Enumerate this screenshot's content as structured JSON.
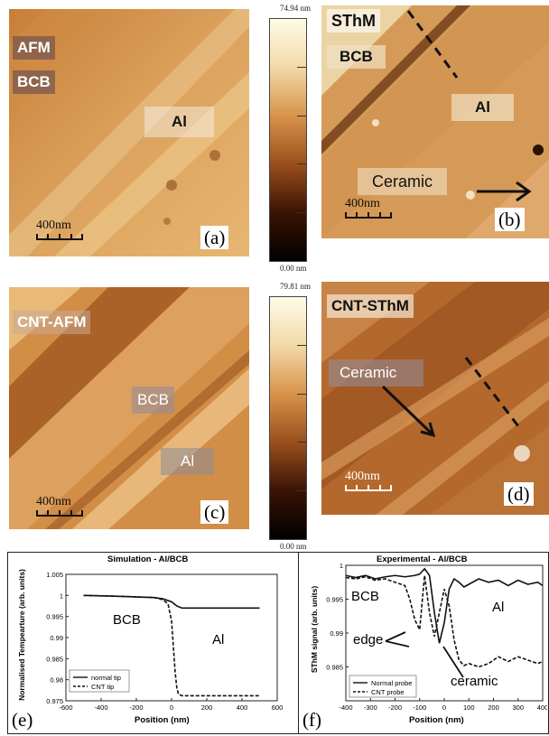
{
  "panel_a": {
    "tag": "AFM",
    "bcb": "BCB",
    "al": "Al",
    "scale": "400nm",
    "letter": "(a)"
  },
  "colorbar_top": {
    "max": "74.94 nm",
    "min": "0.00 nm"
  },
  "panel_b": {
    "tag": "SThM",
    "bcb": "BCB",
    "al": "Al",
    "ceramic": "Ceramic",
    "scale": "400nm",
    "letter": "(b)"
  },
  "panel_c": {
    "tag": "CNT-AFM",
    "bcb": "BCB",
    "al": "Al",
    "scale": "400nm",
    "letter": "(c)"
  },
  "colorbar_bottom": {
    "max": "79.81 nm",
    "min": "0.00 nm"
  },
  "panel_d": {
    "tag": "CNT-SThM",
    "ceramic": "Ceramic",
    "scale": "400nm",
    "letter": "(d)"
  },
  "panel_e": {
    "letter": "(e)",
    "bcb": "BCB",
    "al": "Al"
  },
  "panel_f": {
    "letter": "(f)",
    "bcb": "BCB",
    "al": "Al",
    "edge": "edge",
    "ceramic": "ceramic"
  },
  "chart_data": [
    {
      "type": "line",
      "title": "Simulation - Al/BCB",
      "xlabel": "Position (nm)",
      "ylabel": "Normalised Tempearture (arb. units)",
      "xlim": [
        -600,
        600
      ],
      "ylim": [
        0.975,
        1.005
      ],
      "xticks": [
        "-600",
        "-400",
        "-200",
        "0",
        "200",
        "400",
        "600"
      ],
      "yticks": [
        "1.005",
        "1",
        "0.995",
        "0.99",
        "0.985",
        "0.98",
        "0.975"
      ],
      "series": [
        {
          "name": "normal tip",
          "style": "solid",
          "x": [
            -500,
            -300,
            -100,
            -50,
            0,
            30,
            60,
            100,
            200,
            300,
            400,
            500
          ],
          "y": [
            1.0,
            0.9998,
            0.9995,
            0.9992,
            0.9985,
            0.9975,
            0.997,
            0.997,
            0.997,
            0.997,
            0.997,
            0.997
          ]
        },
        {
          "name": "CNT tip",
          "style": "dashed",
          "x": [
            -500,
            -300,
            -100,
            -50,
            -20,
            0,
            10,
            20,
            30,
            40,
            60,
            100,
            200,
            300,
            400,
            500
          ],
          "y": [
            1.0,
            0.9998,
            0.9995,
            0.999,
            0.998,
            0.994,
            0.988,
            0.982,
            0.978,
            0.9765,
            0.9762,
            0.9762,
            0.9762,
            0.9762,
            0.9762,
            0.9762
          ]
        }
      ],
      "legend": "bottom-left"
    },
    {
      "type": "line",
      "title": "Experimental - Al/BCB",
      "xlabel": "Position (nm)",
      "ylabel": "SThM signal (arb. units)",
      "xlim": [
        -400,
        400
      ],
      "ylim": [
        0.98,
        1.0
      ],
      "xticks": [
        "-400",
        "-300",
        "-200",
        "-100",
        "0",
        "100",
        "200",
        "300",
        "400"
      ],
      "yticks": [
        "1",
        "0.995",
        "0.99",
        "0.985"
      ],
      "series": [
        {
          "name": "Normal probe",
          "style": "solid",
          "x": [
            -400,
            -360,
            -320,
            -280,
            -240,
            -200,
            -160,
            -120,
            -100,
            -80,
            -60,
            -40,
            -20,
            0,
            20,
            40,
            60,
            80,
            100,
            140,
            180,
            220,
            260,
            300,
            340,
            380,
            400
          ],
          "y": [
            0.9985,
            0.9982,
            0.9985,
            0.998,
            0.9983,
            0.9985,
            0.9983,
            0.9985,
            0.9987,
            0.9995,
            0.9985,
            0.993,
            0.9885,
            0.9915,
            0.9965,
            0.998,
            0.9975,
            0.9968,
            0.9972,
            0.998,
            0.9975,
            0.9978,
            0.997,
            0.9978,
            0.9972,
            0.9975,
            0.997
          ]
        },
        {
          "name": "CNT probe",
          "style": "dashed",
          "x": [
            -400,
            -360,
            -320,
            -280,
            -240,
            -200,
            -160,
            -140,
            -120,
            -100,
            -80,
            -60,
            -40,
            -20,
            0,
            20,
            40,
            60,
            80,
            100,
            140,
            180,
            220,
            260,
            300,
            340,
            380,
            400
          ],
          "y": [
            0.9982,
            0.998,
            0.9983,
            0.9978,
            0.998,
            0.9975,
            0.997,
            0.995,
            0.992,
            0.9905,
            0.9985,
            0.993,
            0.9895,
            0.993,
            0.9965,
            0.994,
            0.989,
            0.986,
            0.9852,
            0.9855,
            0.985,
            0.9855,
            0.9865,
            0.9858,
            0.9865,
            0.986,
            0.9855,
            0.9858
          ]
        }
      ],
      "legend": "bottom-left"
    }
  ]
}
